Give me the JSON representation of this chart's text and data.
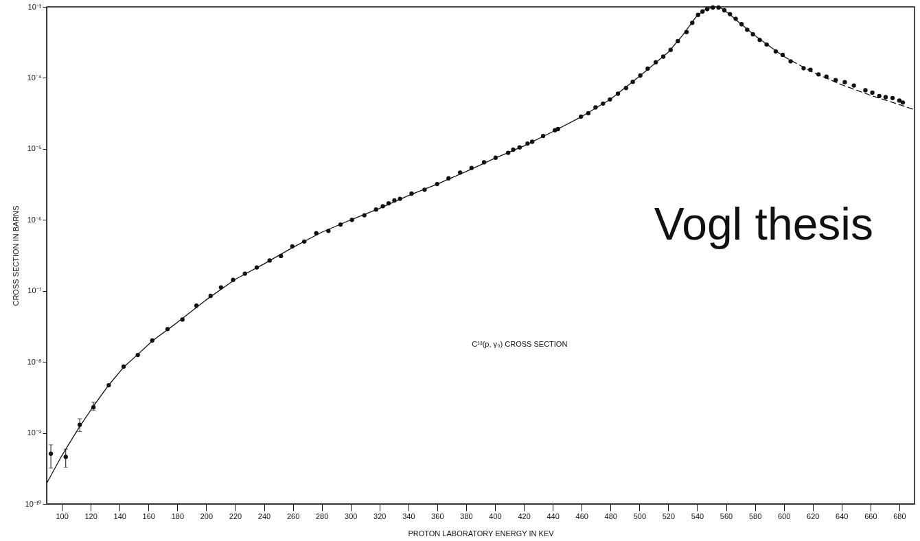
{
  "chart_data": {
    "type": "scatter",
    "xlabel": "PROTON LABORATORY ENERGY IN KEV",
    "ylabel": "CROSS SECTION IN BARNS",
    "annotations": [
      "C¹³(p, γ₀) CROSS SECTION",
      "Vogl thesis"
    ],
    "log": "y",
    "grid": false,
    "xlim": [
      89.5,
      690.5
    ],
    "xticks": [
      100,
      120,
      140,
      160,
      180,
      200,
      220,
      240,
      260,
      280,
      300,
      320,
      340,
      360,
      380,
      400,
      420,
      440,
      460,
      480,
      500,
      520,
      540,
      560,
      580,
      600,
      620,
      640,
      660,
      680
    ],
    "ylim": [
      1e-10,
      0.001
    ],
    "yticks": [
      {
        "value": 1e-10,
        "label": "10⁻¹⁰"
      },
      {
        "value": 1e-09,
        "label": "10⁻⁹"
      },
      {
        "value": 1e-08,
        "label": "10⁻⁸"
      },
      {
        "value": 1e-07,
        "label": "10⁻⁷"
      },
      {
        "value": 1e-06,
        "label": "10⁻⁶"
      },
      {
        "value": 1e-05,
        "label": "10⁻⁵"
      },
      {
        "value": 0.0001,
        "label": "10⁻⁴"
      },
      {
        "value": 0.001,
        "label": "10⁻³"
      }
    ],
    "series": [
      {
        "marker": "circle",
        "color": "#111111",
        "x": [
          92.4,
          102.7,
          112.4,
          121.9,
          132.5,
          142.8,
          152.6,
          162.6,
          173.2,
          183.5,
          193.2,
          203.0,
          210.2,
          218.6,
          226.8,
          235.0,
          243.9,
          251.7,
          259.6,
          267.9,
          276.2,
          284.6,
          293.0,
          300.9,
          309.5,
          317.6,
          322.3,
          326.3,
          330.3,
          334.2,
          342.2,
          351.2,
          359.9,
          367.8,
          375.8,
          383.7,
          392.4,
          400.4,
          409.1,
          412.6,
          417.0,
          422.5,
          425.7,
          433.3,
          441.5,
          443.6,
          459.5,
          464.6,
          469.6,
          474.8,
          479.6,
          485.1,
          490.7,
          495.4,
          500.6,
          505.7,
          511.3,
          516.5,
          521.6,
          526.6,
          532.6,
          536.6,
          540.6,
          543.7,
          546.9,
          550.9,
          554.8,
          558.8,
          562.7,
          566.7,
          570.7,
          574.6,
          578.6,
          583.3,
          588.1,
          594.4,
          599.2,
          604.7,
          613.7,
          618.4,
          624.0,
          629.5,
          635.9,
          642.2,
          648.5,
          656.5,
          661.3,
          666.1,
          670.5,
          675.3,
          680.0,
          682.4
        ],
        "values": [
          5.1e-10,
          4.6e-10,
          1.3e-09,
          2.3e-09,
          4.7e-09,
          8.6e-09,
          1.25e-08,
          2e-08,
          2.9e-08,
          3.95e-08,
          6.2e-08,
          8.5e-08,
          1.12e-07,
          1.43e-07,
          1.75e-07,
          2.14e-07,
          2.68e-07,
          3.1e-07,
          4.24e-07,
          4.95e-07,
          6.5e-07,
          7e-07,
          8.6e-07,
          1e-06,
          1.16e-06,
          1.4e-06,
          1.56e-06,
          1.71e-06,
          1.88e-06,
          1.98e-06,
          2.35e-06,
          2.66e-06,
          3.2e-06,
          3.85e-06,
          4.64e-06,
          5.38e-06,
          6.47e-06,
          7.5e-06,
          8.8e-06,
          9.75e-06,
          1.05e-05,
          1.19e-05,
          1.26e-05,
          1.52e-05,
          1.83e-05,
          1.9e-05,
          2.85e-05,
          3.18e-05,
          3.84e-05,
          4.35e-05,
          4.97e-05,
          5.98e-05,
          7.2e-05,
          8.8e-05,
          0.000108,
          0.000135,
          0.000166,
          0.000199,
          0.000248,
          0.000329,
          0.000442,
          0.000596,
          0.00077,
          0.00086,
          0.00093,
          0.00098,
          0.00098,
          0.000895,
          0.00079,
          0.00068,
          0.00057,
          0.000476,
          0.000411,
          0.000342,
          0.000295,
          0.000236,
          0.000211,
          0.000171,
          0.000137,
          0.00013,
          0.000112,
          0.000104,
          9.3e-05,
          8.7e-05,
          7.8e-05,
          6.7e-05,
          6.2e-05,
          5.56e-05,
          5.35e-05,
          5.2e-05,
          4.8e-05,
          4.5e-05
        ],
        "errors": [
          [
            3.2e-10,
            6.8e-10
          ],
          [
            3.3e-10,
            5.9e-10
          ],
          [
            1.05e-09,
            1.58e-09
          ],
          [
            2.09e-09,
            2.7e-09
          ],
          null,
          null,
          null,
          null,
          null,
          null,
          null,
          null,
          null,
          null,
          null,
          null,
          null,
          null,
          null,
          null,
          null,
          null,
          null,
          null,
          null,
          null,
          null,
          null,
          null,
          null,
          null,
          null,
          null,
          null,
          null,
          null,
          null,
          null,
          null,
          null,
          null,
          null,
          null,
          null,
          null,
          null,
          null,
          null,
          null,
          null,
          null,
          null,
          null,
          null,
          null,
          null,
          null,
          null,
          null,
          null,
          null,
          null,
          null,
          null,
          null,
          null,
          null,
          null,
          null,
          null,
          null,
          null,
          null,
          null,
          null,
          null,
          null,
          null,
          null,
          null,
          null,
          null,
          null,
          null,
          null,
          null,
          null,
          null,
          null,
          null,
          null,
          null
        ]
      },
      {
        "type": "line",
        "marker": "none",
        "color": "#111111",
        "line_style": "solid",
        "x": [
          89.5,
          100,
          112,
          122,
          132,
          143,
          153,
          163,
          180,
          200,
          220,
          240,
          260,
          280,
          300,
          320,
          340,
          360,
          380,
          400,
          420,
          440,
          460,
          480,
          500,
          520,
          530,
          540,
          546,
          552,
          556,
          562,
          570,
          580,
          590,
          600
        ],
        "values": [
          1.95e-10,
          4.8e-10,
          1.2e-09,
          2.4e-09,
          4.6e-09,
          8.5e-09,
          1.3e-08,
          2e-08,
          3.6e-08,
          7.5e-08,
          1.45e-07,
          2.4e-07,
          4.1e-07,
          6.7e-07,
          1e-06,
          1.45e-06,
          2.2e-06,
          3.2e-06,
          4.8e-06,
          7.4e-06,
          1.1e-05,
          1.75e-05,
          2.85e-05,
          5e-05,
          0.000105,
          0.00023,
          0.0004,
          0.00076,
          0.00093,
          0.001,
          0.00098,
          0.0008,
          0.00058,
          0.000395,
          0.00028,
          0.0002
        ]
      },
      {
        "type": "line",
        "marker": "none",
        "color": "#111111",
        "line_style": "dashed",
        "x": [
          600,
          620,
          640,
          660,
          680,
          690.5
        ],
        "values": [
          0.0002,
          0.00012,
          8e-05,
          5.7e-05,
          4.2e-05,
          3.56e-05
        ]
      }
    ]
  }
}
